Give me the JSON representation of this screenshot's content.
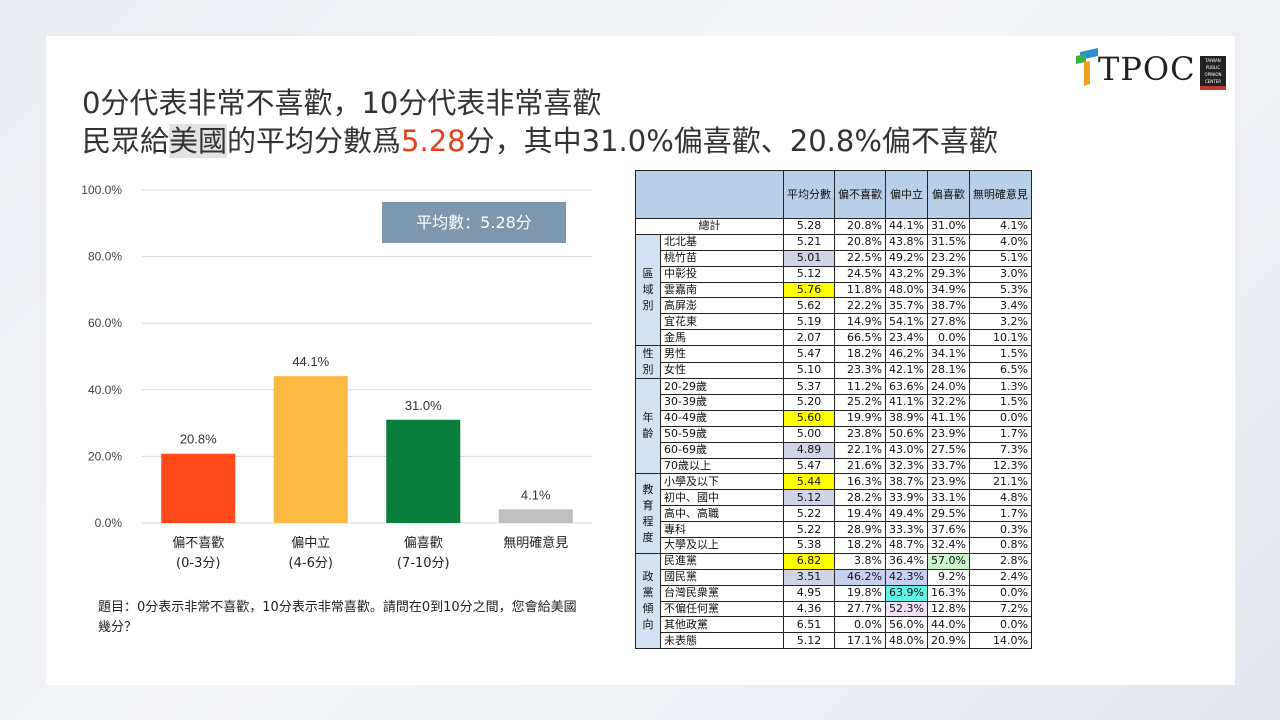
{
  "title_line1": "0分代表非常不喜歡，10分代表非常喜歡",
  "title_line2_a": "民眾給",
  "title_line2_b": "美國",
  "title_line2_c": "的平均分數爲",
  "title_line2_d": "5.28",
  "title_line2_e": "分，其中31.0%偏喜歡、20.8%偏不喜歡",
  "logo": "TPOC",
  "logo_badge": [
    "TAIWAN",
    "PUBLIC",
    "OPINION",
    "CENTER"
  ],
  "avg_box": "平均數：5.28分",
  "question": "題目：0分表示非常不喜歡，10分表示非常喜歡。請問在0到10分之間，您會給美國幾分？",
  "colors": {
    "red": "#e8401c",
    "orange": "#fbb843",
    "green": "#0a7e3d",
    "gray": "#bfbfbf",
    "header": "#b8cfe8"
  },
  "chart_data": {
    "type": "bar",
    "categories": [
      [
        "偏不喜歡",
        "(0-3分)"
      ],
      [
        "偏中立",
        "(4-6分)"
      ],
      [
        "偏喜歡",
        "(7-10分)"
      ],
      [
        "無明確意見",
        ""
      ]
    ],
    "values": [
      20.8,
      44.1,
      31.0,
      4.1
    ],
    "value_labels": [
      "20.8%",
      "44.1%",
      "31.0%",
      "4.1%"
    ],
    "colors": [
      "#ff4a1c",
      "#fbb843",
      "#0a7e3d",
      "#bfbfbf"
    ],
    "yticks": [
      "0.0%",
      "20.0%",
      "40.0%",
      "60.0%",
      "80.0%",
      "100.0%"
    ],
    "ylim": [
      0,
      100
    ],
    "grid": true
  },
  "table": {
    "headers": [
      "平均分數",
      "偏不喜歡",
      "偏中立",
      "偏喜歡",
      "無明確意見"
    ],
    "total": {
      "label": "總計",
      "values": [
        "5.28",
        "20.8%",
        "44.1%",
        "31.0%",
        "4.1%"
      ]
    },
    "groups": [
      {
        "name": "區域別",
        "rows": [
          {
            "label": "北北基",
            "v": [
              "5.21",
              "20.8%",
              "43.8%",
              "31.5%",
              "4.0%"
            ]
          },
          {
            "label": "桃竹苗",
            "v": [
              "5.01",
              "22.5%",
              "49.2%",
              "23.2%",
              "5.1%"
            ],
            "hl": "gr"
          },
          {
            "label": "中彰投",
            "v": [
              "5.12",
              "24.5%",
              "43.2%",
              "29.3%",
              "3.0%"
            ]
          },
          {
            "label": "雲嘉南",
            "v": [
              "5.76",
              "11.8%",
              "48.0%",
              "34.9%",
              "5.3%"
            ],
            "hl": "y"
          },
          {
            "label": "高屏澎",
            "v": [
              "5.62",
              "22.2%",
              "35.7%",
              "38.7%",
              "3.4%"
            ]
          },
          {
            "label": "宜花東",
            "v": [
              "5.19",
              "14.9%",
              "54.1%",
              "27.8%",
              "3.2%"
            ]
          },
          {
            "label": "金馬",
            "v": [
              "2.07",
              "66.5%",
              "23.4%",
              "0.0%",
              "10.1%"
            ]
          }
        ]
      },
      {
        "name": "性別",
        "rows": [
          {
            "label": "男性",
            "v": [
              "5.47",
              "18.2%",
              "46.2%",
              "34.1%",
              "1.5%"
            ]
          },
          {
            "label": "女性",
            "v": [
              "5.10",
              "23.3%",
              "42.1%",
              "28.1%",
              "6.5%"
            ]
          }
        ]
      },
      {
        "name": "年齡",
        "rows": [
          {
            "label": "20-29歲",
            "v": [
              "5.37",
              "11.2%",
              "63.6%",
              "24.0%",
              "1.3%"
            ]
          },
          {
            "label": "30-39歲",
            "v": [
              "5.20",
              "25.2%",
              "41.1%",
              "32.2%",
              "1.5%"
            ]
          },
          {
            "label": "40-49歲",
            "v": [
              "5.60",
              "19.9%",
              "38.9%",
              "41.1%",
              "0.0%"
            ],
            "hl": "y"
          },
          {
            "label": "50-59歲",
            "v": [
              "5.00",
              "23.8%",
              "50.6%",
              "23.9%",
              "1.7%"
            ]
          },
          {
            "label": "60-69歲",
            "v": [
              "4.89",
              "22.1%",
              "43.0%",
              "27.5%",
              "7.3%"
            ],
            "hl": "gr"
          },
          {
            "label": "70歲以上",
            "v": [
              "5.47",
              "21.6%",
              "32.3%",
              "33.7%",
              "12.3%"
            ]
          }
        ]
      },
      {
        "name": "教育程度",
        "rows": [
          {
            "label": "小學及以下",
            "v": [
              "5.44",
              "16.3%",
              "38.7%",
              "23.9%",
              "21.1%"
            ],
            "hl": "y"
          },
          {
            "label": "初中、國中",
            "v": [
              "5.12",
              "28.2%",
              "33.9%",
              "33.1%",
              "4.8%"
            ],
            "hl": "gr"
          },
          {
            "label": "高中、高職",
            "v": [
              "5.22",
              "19.4%",
              "49.4%",
              "29.5%",
              "1.7%"
            ]
          },
          {
            "label": "專科",
            "v": [
              "5.22",
              "28.9%",
              "33.3%",
              "37.6%",
              "0.3%"
            ]
          },
          {
            "label": "大學及以上",
            "v": [
              "5.38",
              "18.2%",
              "48.7%",
              "32.4%",
              "0.8%"
            ]
          }
        ]
      },
      {
        "name": "政黨傾向",
        "rows": [
          {
            "label": "民進黨",
            "v": [
              "6.82",
              "3.8%",
              "36.4%",
              "57.0%",
              "2.8%"
            ],
            "hl": "y",
            "cell": {
              "3": "lg"
            }
          },
          {
            "label": "國民黨",
            "v": [
              "3.51",
              "46.2%",
              "42.3%",
              "9.2%",
              "2.4%"
            ],
            "hl": "gr",
            "cell": {
              "1": "pk",
              "2": "pk"
            }
          },
          {
            "label": "台灣民衆黨",
            "v": [
              "4.95",
              "19.8%",
              "63.9%",
              "16.3%",
              "0.0%"
            ],
            "cell": {
              "2": "cy"
            }
          },
          {
            "label": "不偏任何黨",
            "v": [
              "4.36",
              "27.7%",
              "52.3%",
              "12.8%",
              "7.2%"
            ],
            "cell": {
              "2": "lv"
            }
          },
          {
            "label": "其他政黨",
            "v": [
              "6.51",
              "0.0%",
              "56.0%",
              "44.0%",
              "0.0%"
            ]
          },
          {
            "label": "未表態",
            "v": [
              "5.12",
              "17.1%",
              "48.0%",
              "20.9%",
              "14.0%"
            ]
          }
        ]
      }
    ]
  }
}
